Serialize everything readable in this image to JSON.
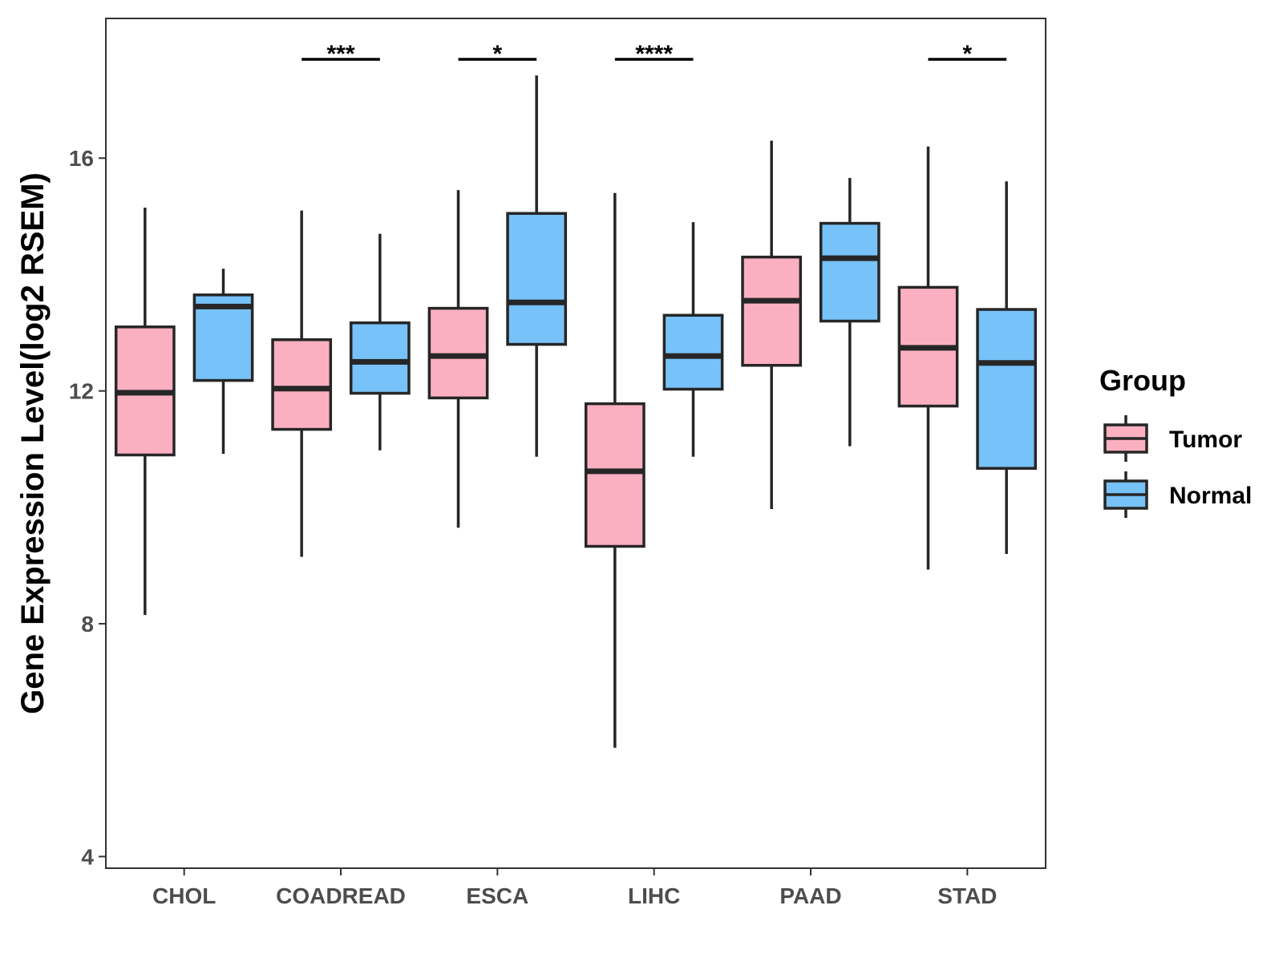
{
  "chart_data": {
    "type": "boxplot",
    "title": "",
    "xlabel": "",
    "ylabel": "Gene Expression Level(log2 RSEM)",
    "ylim": [
      3.8,
      18.4
    ],
    "yticks": [
      4,
      8,
      12,
      16
    ],
    "grid": false,
    "legend": {
      "title": "Group",
      "position": "right",
      "entries": [
        {
          "name": "Tumor",
          "color": "#FBB0C1"
        },
        {
          "name": "Normal",
          "color": "#77C2F8"
        }
      ]
    },
    "categories": [
      "CHOL",
      "COADREAD",
      "ESCA",
      "LIHC",
      "PAAD",
      "STAD"
    ],
    "series": [
      {
        "name": "Tumor",
        "color": "#FBB0C1",
        "boxes": [
          {
            "min": 8.15,
            "q1": 10.9,
            "median": 11.97,
            "q3": 13.1,
            "max": 15.15
          },
          {
            "min": 9.15,
            "q1": 11.34,
            "median": 12.04,
            "q3": 12.88,
            "max": 15.1
          },
          {
            "min": 9.65,
            "q1": 11.88,
            "median": 12.6,
            "q3": 13.42,
            "max": 15.45
          },
          {
            "min": 5.87,
            "q1": 9.33,
            "median": 10.62,
            "q3": 11.78,
            "max": 15.4
          },
          {
            "min": 9.97,
            "q1": 12.44,
            "median": 13.55,
            "q3": 14.3,
            "max": 16.3
          },
          {
            "min": 8.93,
            "q1": 11.74,
            "median": 12.74,
            "q3": 13.78,
            "max": 16.2
          }
        ]
      },
      {
        "name": "Normal",
        "color": "#77C2F8",
        "boxes": [
          {
            "min": 10.92,
            "q1": 12.18,
            "median": 13.45,
            "q3": 13.65,
            "max": 14.1
          },
          {
            "min": 10.98,
            "q1": 11.96,
            "median": 12.5,
            "q3": 13.17,
            "max": 14.7
          },
          {
            "min": 10.87,
            "q1": 12.8,
            "median": 13.52,
            "q3": 15.05,
            "max": 17.42
          },
          {
            "min": 10.87,
            "q1": 12.03,
            "median": 12.6,
            "q3": 13.3,
            "max": 14.9
          },
          {
            "min": 11.05,
            "q1": 13.2,
            "median": 14.28,
            "q3": 14.88,
            "max": 15.66
          },
          {
            "min": 9.2,
            "q1": 10.67,
            "median": 12.48,
            "q3": 13.4,
            "max": 15.6
          }
        ]
      }
    ],
    "significance": [
      {
        "category": "CHOL",
        "label": ""
      },
      {
        "category": "COADREAD",
        "label": "***"
      },
      {
        "category": "ESCA",
        "label": "*"
      },
      {
        "category": "LIHC",
        "label": "****"
      },
      {
        "category": "PAAD",
        "label": ""
      },
      {
        "category": "STAD",
        "label": "*"
      }
    ]
  }
}
